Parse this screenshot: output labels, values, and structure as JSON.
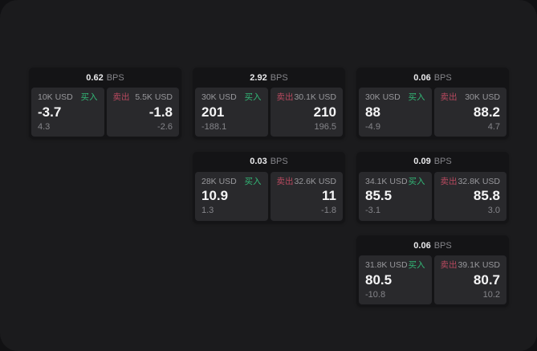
{
  "labels": {
    "bps_unit": "BPS",
    "buy": "买入",
    "sell": "卖出"
  },
  "colors": {
    "page_bg": "#1b1b1d",
    "card_bg": "#141416",
    "panel_bg": "#29292c",
    "buy_green": "#32b877",
    "sell_red": "#b8495f"
  },
  "cards": [
    {
      "bps": "0.62",
      "buy": {
        "amount": "10K USD",
        "price": "-3.7",
        "delta": "4.3"
      },
      "sell": {
        "amount": "5.5K USD",
        "price": "-1.8",
        "delta": "-2.6"
      }
    },
    {
      "bps": "2.92",
      "buy": {
        "amount": "30K USD",
        "price": "201",
        "delta": "-188.1"
      },
      "sell": {
        "amount": "30.1K USD",
        "price": "210",
        "delta": "196.5"
      }
    },
    {
      "bps": "0.06",
      "buy": {
        "amount": "30K USD",
        "price": "88",
        "delta": "-4.9"
      },
      "sell": {
        "amount": "30K USD",
        "price": "88.2",
        "delta": "4.7"
      }
    },
    {
      "bps": "0.03",
      "buy": {
        "amount": "28K USD",
        "price": "10.9",
        "delta": "1.3"
      },
      "sell": {
        "amount": "32.6K USD",
        "price": "11",
        "delta": "-1.8"
      }
    },
    {
      "bps": "0.09",
      "buy": {
        "amount": "34.1K USD",
        "price": "85.5",
        "delta": "-3.1"
      },
      "sell": {
        "amount": "32.8K USD",
        "price": "85.8",
        "delta": "3.0"
      }
    },
    {
      "bps": "0.06",
      "buy": {
        "amount": "31.8K USD",
        "price": "80.5",
        "delta": "-10.8"
      },
      "sell": {
        "amount": "39.1K USD",
        "price": "80.7",
        "delta": "10.2"
      }
    }
  ]
}
